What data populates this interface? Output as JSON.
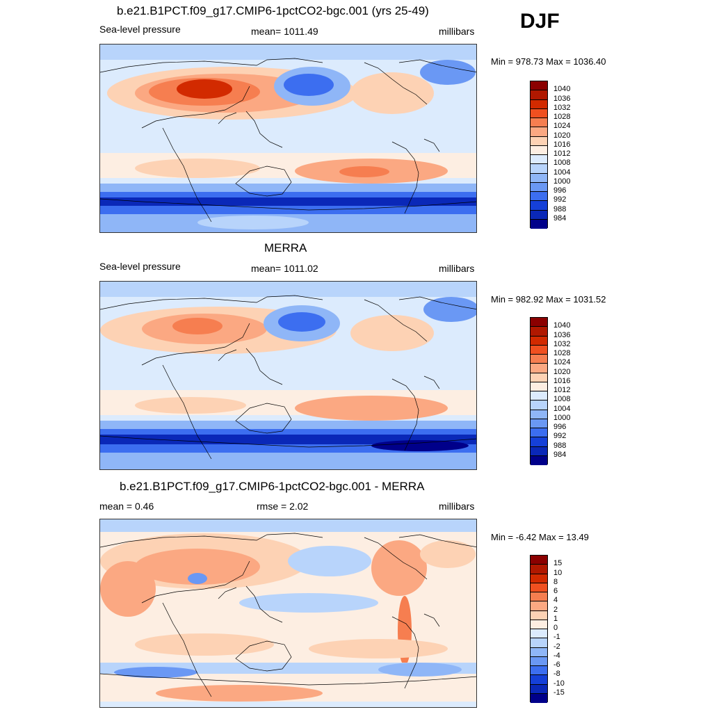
{
  "season": "DJF",
  "panels": [
    {
      "title": "b.e21.B1PCT.f09_g17.CMIP6-1pctCO2-bgc.001 (yrs 25-49)",
      "left": "Sea-level pressure",
      "center": "mean= 1011.49",
      "right": "millibars",
      "minmax": "Min = 978.73 Max = 1036.40",
      "legend": [
        "1040",
        "1036",
        "1032",
        "1028",
        "1024",
        "1020",
        "1016",
        "1012",
        "1008",
        "1004",
        "1000",
        "996",
        "992",
        "988",
        "984"
      ]
    },
    {
      "title": "MERRA",
      "left": "Sea-level pressure",
      "center": "mean= 1011.02",
      "right": "millibars",
      "minmax": "Min = 982.92 Max = 1031.52",
      "legend": [
        "1040",
        "1036",
        "1032",
        "1028",
        "1024",
        "1020",
        "1016",
        "1012",
        "1008",
        "1004",
        "1000",
        "996",
        "992",
        "988",
        "984"
      ]
    },
    {
      "title": "b.e21.B1PCT.f09_g17.CMIP6-1pctCO2-bgc.001 - MERRA",
      "left": "mean =   0.46",
      "center": "rmse =   2.02",
      "right": "millibars",
      "minmax": "Min =  -6.42 Max =  13.49",
      "legend": [
        "15",
        "10",
        "8",
        "6",
        "4",
        "2",
        "1",
        "0",
        "-1",
        "-2",
        "-4",
        "-6",
        "-8",
        "-10",
        "-15"
      ]
    }
  ],
  "colors": {
    "abs_scale": [
      "#8b0000",
      "#b01800",
      "#d22a00",
      "#f05020",
      "#f67e50",
      "#fba882",
      "#fdd2b4",
      "#fdeee2",
      "#dcebfd",
      "#b8d4fb",
      "#8fb6f7",
      "#6a98f4",
      "#3c6ef0",
      "#1540d8",
      "#0a28b8",
      "#00008a"
    ],
    "diff_scale": [
      "#8b0000",
      "#b01800",
      "#d22a00",
      "#f05020",
      "#f67e50",
      "#fba882",
      "#fdd2b4",
      "#fdeee2",
      "#dcebfd",
      "#b8d4fb",
      "#8fb6f7",
      "#6a98f4",
      "#3c6ef0",
      "#1540d8",
      "#0a28b8",
      "#00008a"
    ],
    "coast": "#000000"
  }
}
